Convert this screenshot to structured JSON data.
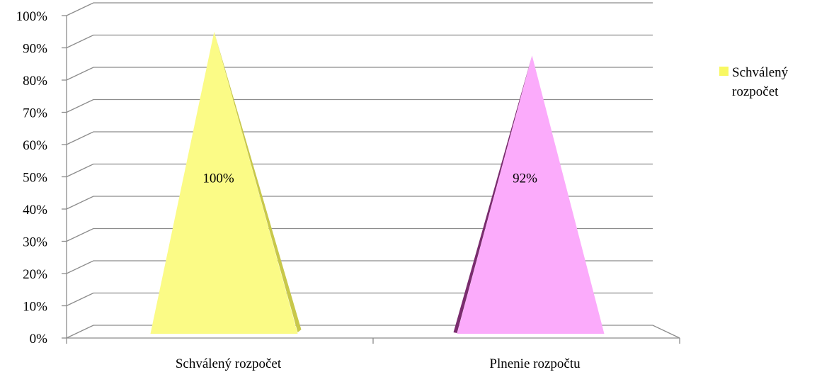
{
  "chart_data": {
    "type": "bar",
    "subtype": "3d-pyramid",
    "categories": [
      "Schválený rozpočet",
      "Plnenie rozpočtu"
    ],
    "values": [
      1.0,
      0.92
    ],
    "data_labels": [
      "100%",
      "92%"
    ],
    "colors": [
      "#fbfb86",
      "#fbabfb"
    ],
    "ylim": [
      0,
      1
    ],
    "yticks": [
      "0%",
      "10%",
      "20%",
      "30%",
      "40%",
      "50%",
      "60%",
      "70%",
      "80%",
      "90%",
      "100%"
    ],
    "grid": true,
    "legend": {
      "position": "right",
      "entries": [
        {
          "label": "Schválený rozpočet",
          "color": "#f8f862"
        }
      ]
    }
  }
}
